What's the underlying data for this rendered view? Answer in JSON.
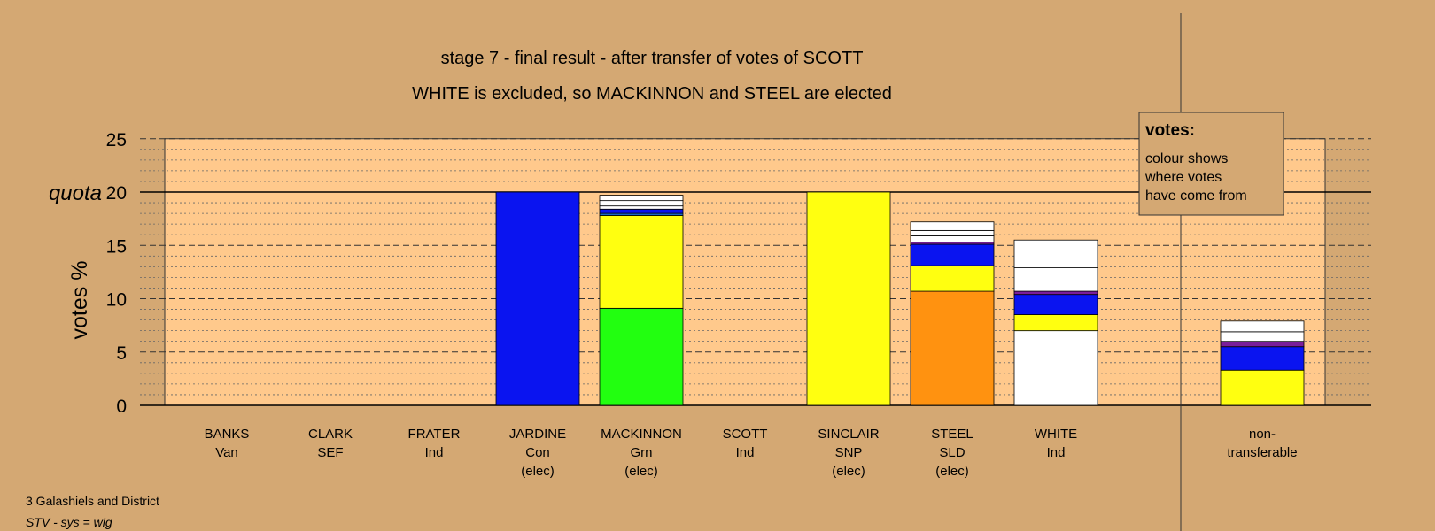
{
  "chart_data": {
    "type": "bar",
    "title": "stage 7 - final result - after transfer of votes of SCOTT",
    "subtitle": "WHITE is excluded, so MACKINNON and STEEL are elected",
    "ylabel": "votes %",
    "ylim": [
      0,
      25
    ],
    "yticks": [
      0,
      5,
      10,
      15,
      20,
      25
    ],
    "quota": {
      "label": "quota",
      "value": 20
    },
    "grid": "dashed major every 5, dotted minor every 1",
    "legend": {
      "title": "votes:",
      "lines": [
        "colour shows",
        "where votes",
        "have come from"
      ],
      "position": "top-right"
    },
    "candidates": [
      {
        "name": "BANKS",
        "party": "Van",
        "status": "",
        "segments": []
      },
      {
        "name": "CLARK",
        "party": "SEF",
        "status": "",
        "segments": []
      },
      {
        "name": "FRATER",
        "party": "Ind",
        "status": "",
        "segments": []
      },
      {
        "name": "JARDINE",
        "party": "Con",
        "status": "(elec)",
        "segments": [
          {
            "color": "#0A14F0",
            "value": 20.0
          }
        ]
      },
      {
        "name": "MACKINNON",
        "party": "Grn",
        "status": "(elec)",
        "segments": [
          {
            "color": "#22FF10",
            "value": 9.1
          },
          {
            "color": "#FFFF10",
            "value": 8.7
          },
          {
            "color": "#1A66C8",
            "value": 0.2
          },
          {
            "color": "#0A14F0",
            "value": 0.4
          },
          {
            "color": "#FFFFFF",
            "value": 0.3
          },
          {
            "color": "#FFFFFF",
            "value": 0.5
          },
          {
            "color": "#FFFFFF",
            "value": 0.5
          }
        ]
      },
      {
        "name": "SCOTT",
        "party": "Ind",
        "status": "",
        "segments": []
      },
      {
        "name": "SINCLAIR",
        "party": "SNP",
        "status": "(elec)",
        "segments": [
          {
            "color": "#FFFF10",
            "value": 20.0
          }
        ]
      },
      {
        "name": "STEEL",
        "party": "SLD",
        "status": "(elec)",
        "segments": [
          {
            "color": "#FF9210",
            "value": 10.7
          },
          {
            "color": "#FFFF10",
            "value": 2.4
          },
          {
            "color": "#0A14F0",
            "value": 2.0
          },
          {
            "color": "#7A1E9A",
            "value": 0.2
          },
          {
            "color": "#FFFFFF",
            "value": 0.6
          },
          {
            "color": "#FFFFFF",
            "value": 0.5
          },
          {
            "color": "#FFFFFF",
            "value": 0.8
          }
        ]
      },
      {
        "name": "WHITE",
        "party": "Ind",
        "status": "",
        "segments": [
          {
            "color": "#FFFFFF",
            "value": 7.0
          },
          {
            "color": "#FFFF10",
            "value": 1.5
          },
          {
            "color": "#0A14F0",
            "value": 1.9
          },
          {
            "color": "#7A1E9A",
            "value": 0.3
          },
          {
            "color": "#FFFFFF",
            "value": 2.2
          },
          {
            "color": "#FFFFFF",
            "value": 2.6
          }
        ]
      },
      {
        "name": "non-",
        "party": "transferable",
        "status": "",
        "segments": [
          {
            "color": "#FFFF10",
            "value": 3.3
          },
          {
            "color": "#0A14F0",
            "value": 2.2
          },
          {
            "color": "#7A1E9A",
            "value": 0.5
          },
          {
            "color": "#FFFFFF",
            "value": 0.9
          },
          {
            "color": "#FFFFFF",
            "value": 1.0
          }
        ]
      }
    ]
  },
  "footer": {
    "line1": "3 Galashiels and District",
    "line2": "STV - sys = wig"
  },
  "colors": {
    "background": "#D4A873",
    "plot_area": "#FFC98C"
  }
}
